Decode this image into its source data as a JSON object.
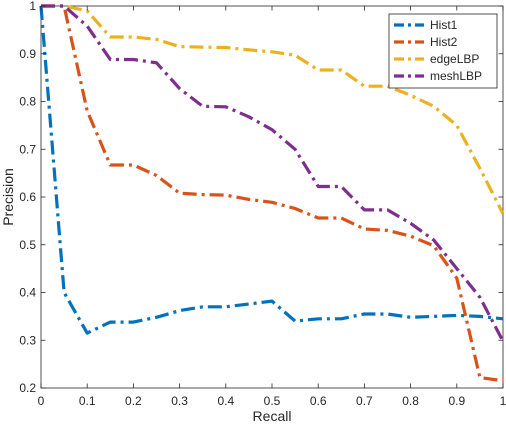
{
  "chart_data": {
    "type": "line",
    "title": "",
    "xlabel": "Recall",
    "ylabel": "Precision",
    "xlim": [
      0,
      1
    ],
    "ylim": [
      0.2,
      1
    ],
    "x_ticks": [
      0,
      0.1,
      0.2,
      0.3,
      0.4,
      0.5,
      0.6,
      0.7,
      0.8,
      0.9,
      1
    ],
    "x_tick_labels": [
      "0",
      "0.1",
      "0.2",
      "0.3",
      "0.4",
      "0.5",
      "0.6",
      "0.7",
      "0.8",
      "0.9",
      "1"
    ],
    "y_ticks": [
      0.2,
      0.3,
      0.4,
      0.5,
      0.6,
      0.7,
      0.8,
      0.9,
      1
    ],
    "y_tick_labels": [
      "0.2",
      "0.3",
      "0.4",
      "0.5",
      "0.6",
      "0.7",
      "0.8",
      "0.9",
      "1"
    ],
    "grid": false,
    "legend_position": "top-right",
    "line_style": "dash-dot",
    "series": [
      {
        "name": "Hist1",
        "color": "#0072BD",
        "x": [
          0,
          0.05,
          0.1,
          0.15,
          0.2,
          0.25,
          0.3,
          0.35,
          0.4,
          0.45,
          0.5,
          0.55,
          0.6,
          0.65,
          0.7,
          0.75,
          0.8,
          0.85,
          0.9,
          0.95,
          1
        ],
        "y": [
          1.0,
          0.4,
          0.315,
          0.338,
          0.338,
          0.348,
          0.362,
          0.37,
          0.37,
          0.376,
          0.382,
          0.34,
          0.345,
          0.345,
          0.355,
          0.355,
          0.348,
          0.35,
          0.352,
          0.35,
          0.345
        ]
      },
      {
        "name": "Hist2",
        "color": "#D95319",
        "x": [
          0,
          0.05,
          0.1,
          0.15,
          0.2,
          0.25,
          0.3,
          0.35,
          0.4,
          0.45,
          0.5,
          0.55,
          0.6,
          0.65,
          0.7,
          0.75,
          0.8,
          0.85,
          0.9,
          0.95,
          1
        ],
        "y": [
          1.0,
          1.0,
          0.78,
          0.667,
          0.667,
          0.645,
          0.608,
          0.605,
          0.604,
          0.595,
          0.589,
          0.576,
          0.556,
          0.556,
          0.533,
          0.53,
          0.518,
          0.498,
          0.43,
          0.222,
          0.215
        ]
      },
      {
        "name": "edgeLBP",
        "color": "#EDB120",
        "x": [
          0,
          0.05,
          0.1,
          0.15,
          0.2,
          0.25,
          0.3,
          0.35,
          0.4,
          0.45,
          0.5,
          0.55,
          0.6,
          0.65,
          0.7,
          0.75,
          0.8,
          0.85,
          0.9,
          0.95,
          1
        ],
        "y": [
          1.0,
          1.0,
          0.99,
          0.935,
          0.935,
          0.93,
          0.915,
          0.914,
          0.913,
          0.908,
          0.904,
          0.897,
          0.866,
          0.866,
          0.832,
          0.832,
          0.813,
          0.79,
          0.75,
          0.66,
          0.565
        ]
      },
      {
        "name": "meshLBP",
        "color": "#7E2F8E",
        "x": [
          0,
          0.05,
          0.1,
          0.15,
          0.2,
          0.25,
          0.3,
          0.35,
          0.4,
          0.45,
          0.5,
          0.55,
          0.6,
          0.65,
          0.7,
          0.75,
          0.8,
          0.85,
          0.9,
          0.95,
          1
        ],
        "y": [
          1.0,
          1.0,
          0.958,
          0.888,
          0.888,
          0.881,
          0.827,
          0.79,
          0.789,
          0.768,
          0.741,
          0.7,
          0.622,
          0.622,
          0.573,
          0.573,
          0.545,
          0.51,
          0.45,
          0.39,
          0.298
        ]
      }
    ]
  }
}
